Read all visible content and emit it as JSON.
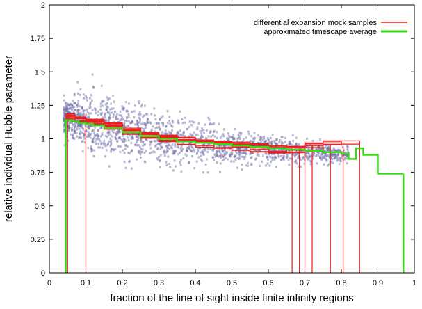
{
  "chart_data": {
    "type": "scatter",
    "title": "",
    "xlabel": "fraction of the line of sight inside finite infinity regions",
    "ylabel": "relative individual Hubble parameter",
    "xlim": [
      0,
      1
    ],
    "ylim": [
      0,
      2
    ],
    "x_ticks": [
      "0",
      "0.1",
      "0.2",
      "0.3",
      "0.4",
      "0.5",
      "0.6",
      "0.7",
      "0.8",
      "0.9",
      "1"
    ],
    "y_ticks": [
      "0",
      "0.25",
      "0.5",
      "0.75",
      "1",
      "1.25",
      "1.5",
      "1.75",
      "2"
    ],
    "x_tick_values": [
      0,
      0.1,
      0.2,
      0.3,
      0.4,
      0.5,
      0.6,
      0.7,
      0.8,
      0.9,
      1
    ],
    "y_tick_values": [
      0,
      0.25,
      0.5,
      0.75,
      1,
      1.25,
      1.5,
      1.75,
      2
    ],
    "grid": false,
    "legend_position": "top-right",
    "scatter_cloud": {
      "color": "#6f70a8",
      "x_range": [
        0.04,
        0.82
      ],
      "trend": [
        [
          0.05,
          1.16
        ],
        [
          0.1,
          1.12
        ],
        [
          0.2,
          1.05
        ],
        [
          0.3,
          1.0
        ],
        [
          0.4,
          0.97
        ],
        [
          0.5,
          0.94
        ],
        [
          0.6,
          0.92
        ],
        [
          0.7,
          0.9
        ],
        [
          0.8,
          0.88
        ]
      ],
      "spread": [
        [
          0.05,
          0.06
        ],
        [
          0.1,
          0.12
        ],
        [
          0.2,
          0.11
        ],
        [
          0.3,
          0.1
        ],
        [
          0.4,
          0.08
        ],
        [
          0.5,
          0.06
        ],
        [
          0.6,
          0.05
        ],
        [
          0.7,
          0.04
        ],
        [
          0.8,
          0.03
        ]
      ],
      "y_range": [
        0.75,
        1.55
      ]
    },
    "series": [
      {
        "name": "differential expansion mock samples",
        "color": "#ee1c1c",
        "type": "step",
        "x": [
          0.045,
          0.07,
          0.1,
          0.15,
          0.2,
          0.25,
          0.3,
          0.35,
          0.4,
          0.45,
          0.5,
          0.55,
          0.6,
          0.65,
          0.7,
          0.75,
          0.8,
          0.85
        ],
        "y": [
          1.17,
          1.15,
          1.13,
          1.1,
          1.06,
          1.03,
          1.01,
          0.99,
          0.97,
          0.96,
          0.95,
          0.94,
          0.93,
          0.93,
          0.95,
          0.96,
          0.95,
          0.87
        ],
        "drop_lines_x": [
          0.045,
          0.05,
          0.1,
          0.665,
          0.685,
          0.7,
          0.72,
          0.77,
          0.805,
          0.85
        ],
        "sample_count": 10
      },
      {
        "name": "approximated timescape average",
        "color": "#33dd11",
        "type": "step",
        "x": [
          0.04,
          0.045,
          0.06,
          0.08,
          0.1,
          0.12,
          0.15,
          0.2,
          0.25,
          0.3,
          0.35,
          0.4,
          0.45,
          0.5,
          0.55,
          0.6,
          0.65,
          0.7,
          0.75,
          0.8,
          0.82,
          0.84,
          0.86,
          0.87,
          0.88,
          0.9,
          0.92,
          0.97
        ],
        "y": [
          1.13,
          1.14,
          1.13,
          1.12,
          1.11,
          1.1,
          1.08,
          1.05,
          1.02,
          1.0,
          0.98,
          0.97,
          0.96,
          0.95,
          0.94,
          0.93,
          0.92,
          0.91,
          0.9,
          0.89,
          0.85,
          0.93,
          0.88,
          0.88,
          0.88,
          0.74,
          0.74,
          0.74
        ],
        "drop_lines_x": [
          0.045,
          0.97
        ]
      }
    ]
  }
}
